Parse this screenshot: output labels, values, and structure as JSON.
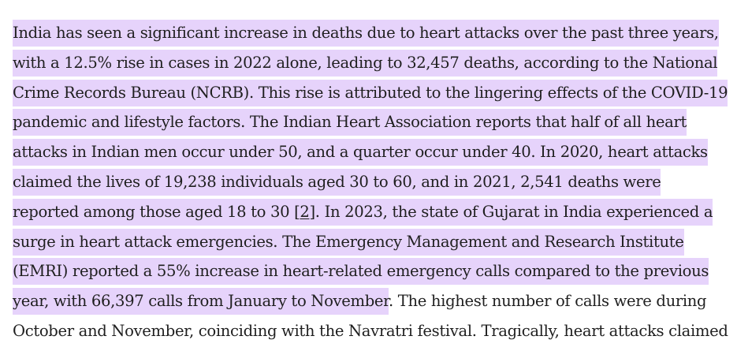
{
  "paragraph": {
    "lines": [
      {
        "highlighted": "India has seen a significant increase in deaths due to heart attacks over the past three years,",
        "plain": ""
      },
      {
        "highlighted": "with a 12.5% rise in cases in 2022 alone, leading to 32,457 deaths, according to the National",
        "plain": ""
      },
      {
        "highlighted": "Crime Records Bureau (NCRB). This rise is attributed to the lingering effects of the COVID-19",
        "plain": ""
      },
      {
        "highlighted": "pandemic and lifestyle factors. The Indian Heart Association reports that half of all heart",
        "plain": ""
      },
      {
        "highlighted": "attacks in Indian men occur under 50, and a quarter occur under 40. In 2020, heart attacks",
        "plain": ""
      },
      {
        "highlighted": "claimed the lives of 19,238 individuals aged 30 to 60, and in 2021, 2,541 deaths were",
        "plain": ""
      },
      {
        "highlighted_before": "reported among those aged 18 to 30 [",
        "reference": "2",
        "highlighted_after": "]. In 2023, the state of Gujarat in India experienced a"
      },
      {
        "highlighted": "surge in heart attack emergencies. The Emergency Management and Research Institute",
        "plain": ""
      },
      {
        "highlighted": "(EMRI) reported a 55% increase in heart-related emergency calls compared to the previous",
        "plain": ""
      },
      {
        "highlighted": "year, with 66,397 calls from January to November",
        "plain": ". The highest number of calls were during"
      },
      {
        "highlighted": "",
        "plain": "October and November, coinciding with the Navratri festival. Tragically, heart attacks claimed"
      }
    ]
  },
  "colors": {
    "highlight": "#e6d3fb",
    "text": "#1f1f1f"
  }
}
